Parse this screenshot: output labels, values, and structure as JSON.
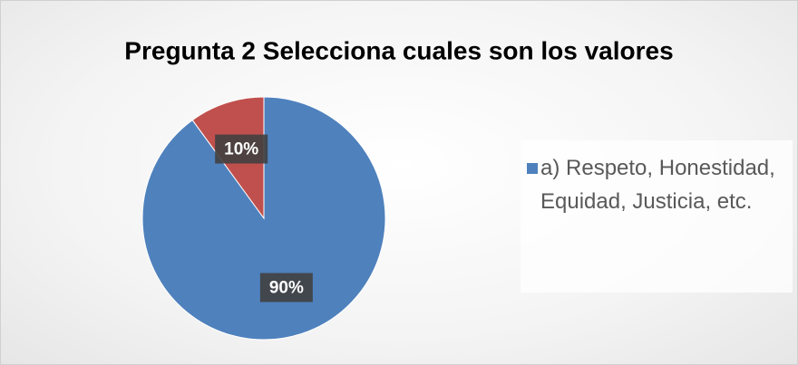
{
  "chart_data": {
    "type": "pie",
    "title": "Pregunta 2 Selecciona cuales son los valores",
    "categories": [
      "a) Respeto, Honestidad, Equidad, Justicia, etc.",
      null
    ],
    "values": [
      90,
      10
    ],
    "value_labels": [
      "90%",
      "10%"
    ],
    "colors": [
      "#4f81bd",
      "#c0504d"
    ],
    "legend": "right"
  }
}
